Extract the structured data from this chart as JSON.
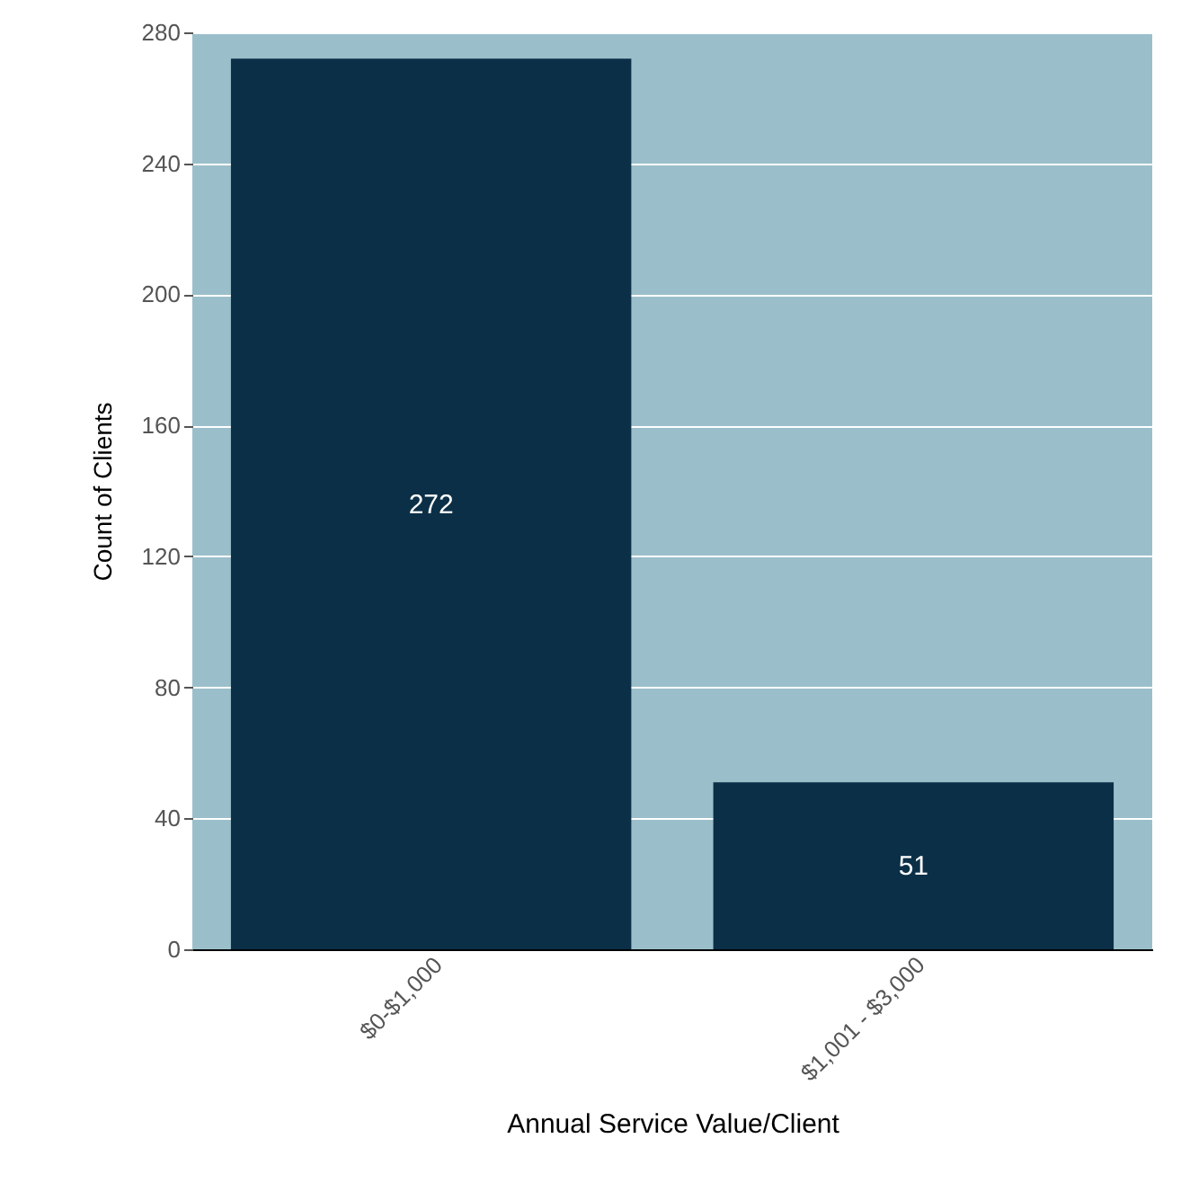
{
  "chart_data": {
    "type": "bar",
    "xlabel": "Annual Service Value/Client",
    "ylabel": "Count of Clients",
    "categories": [
      "$0-$1,000",
      "$1,001 - $3,000"
    ],
    "values": [
      272,
      51
    ],
    "color": "#0b2f47",
    "ylim": [
      0,
      280
    ],
    "yticks": [
      0,
      40,
      80,
      120,
      160,
      200,
      240,
      280
    ],
    "grid": "y",
    "data_labels": true
  }
}
